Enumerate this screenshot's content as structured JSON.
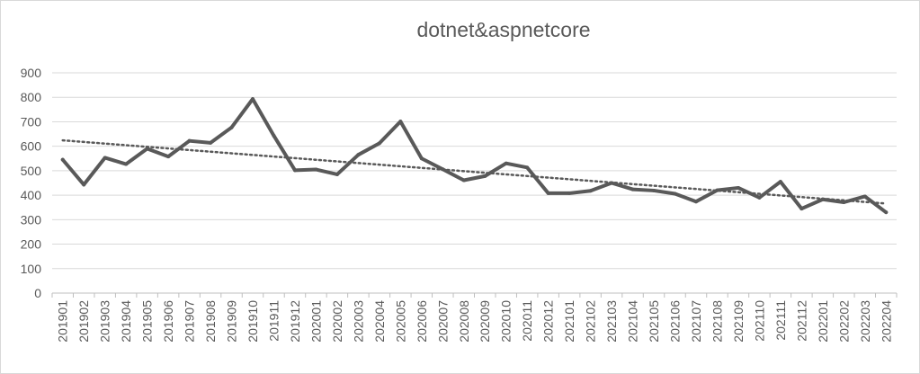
{
  "chart_data": {
    "type": "line",
    "title": "dotnet&aspnetcore",
    "xlabel": "",
    "ylabel": "",
    "ylim": [
      0,
      900
    ],
    "yticks": [
      0,
      100,
      200,
      300,
      400,
      500,
      600,
      700,
      800,
      900
    ],
    "grid": true,
    "legend": "none",
    "categories": [
      "201901",
      "201902",
      "201903",
      "201904",
      "201905",
      "201906",
      "201907",
      "201908",
      "201909",
      "201910",
      "201911",
      "201912",
      "202001",
      "202002",
      "202003",
      "202004",
      "202005",
      "202006",
      "202007",
      "202008",
      "202009",
      "202010",
      "202011",
      "202012",
      "202101",
      "202102",
      "202103",
      "202104",
      "202105",
      "202106",
      "202107",
      "202108",
      "202109",
      "202110",
      "202111",
      "202112",
      "202201",
      "202202",
      "202203",
      "202204"
    ],
    "series": [
      {
        "values": [
          545,
          443,
          553,
          527,
          590,
          558,
          622,
          614,
          677,
          793,
          643,
          502,
          505,
          485,
          565,
          612,
          701,
          550,
          506,
          461,
          478,
          530,
          513,
          408,
          408,
          418,
          450,
          424,
          419,
          406,
          374,
          420,
          430,
          390,
          455,
          345,
          383,
          371,
          395,
          330
        ],
        "color": "#595959"
      }
    ],
    "trendline": {
      "type": "linear",
      "style": "dotted",
      "color": "#595959"
    }
  }
}
